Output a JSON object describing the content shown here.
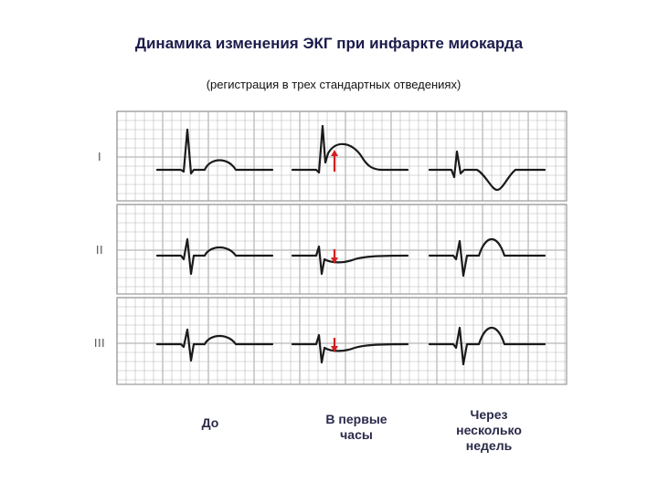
{
  "title": "Динамика изменения ЭКГ при инфаркте миокарда",
  "subtitle": "(регистрация в трех стандартных отведениях)",
  "leads": [
    "I",
    "II",
    "III"
  ],
  "stages": [
    {
      "caption": "До"
    },
    {
      "caption": "В первые часы"
    },
    {
      "caption": "Через несколько недель"
    }
  ],
  "colors": {
    "grid": "#b8b8b8",
    "trace": "#1a1a1a",
    "arrow": "#d42020",
    "text": "#1c1c4c"
  }
}
